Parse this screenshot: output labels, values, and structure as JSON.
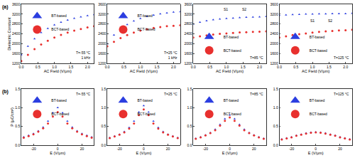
{
  "chart_data": [
    {
      "type": "scatter",
      "panel_label": "(a)",
      "legend": "upper left",
      "xlabel": "AC Field (V/μm)",
      "ylabel": "Dielectric Constant",
      "annotations": [
        "T=-55 °C",
        "1 kHz"
      ],
      "xlim": [
        0,
        2.2
      ],
      "xticks": [
        {
          "value": 0,
          "label": "0.0"
        },
        {
          "value": 0.5,
          "label": "0.5"
        },
        {
          "value": 1,
          "label": "1.0"
        },
        {
          "value": 1.5,
          "label": "1.5"
        },
        {
          "value": 2,
          "label": "2.0"
        }
      ],
      "ylim": [
        1200,
        3600
      ],
      "yticks": [
        1200,
        1600,
        2000,
        2400,
        2800,
        3200,
        3600
      ],
      "x": [
        0,
        0.2,
        0.4,
        0.6,
        0.8,
        1.0,
        1.2,
        1.4,
        1.6,
        1.8,
        2.0,
        2.2
      ],
      "series": [
        {
          "name": "BT-based",
          "color": "#2b3ee0",
          "marker": "triangle-up",
          "values": [
            1550,
            1900,
            2200,
            2450,
            2620,
            2760,
            2870,
            2960,
            3030,
            3090,
            3140,
            3180
          ]
        },
        {
          "name": "BCT-based",
          "color": "#e8302e",
          "marker": "circle",
          "values": [
            1300,
            1550,
            1780,
            1970,
            2120,
            2250,
            2360,
            2450,
            2530,
            2600,
            2660,
            2710
          ]
        }
      ]
    },
    {
      "type": "scatter",
      "legend": "upper left",
      "xlabel": "AC Field (V/μm)",
      "annotations": [
        "T=25 °C",
        "1 kHz"
      ],
      "xlim": [
        0,
        2.2
      ],
      "xticks": [
        {
          "value": 0,
          "label": "0.0"
        },
        {
          "value": 0.5,
          "label": "0.5"
        },
        {
          "value": 1,
          "label": "1.0"
        },
        {
          "value": 1.5,
          "label": "1.5"
        },
        {
          "value": 2,
          "label": "2.0"
        }
      ],
      "ylim": [
        1200,
        3600
      ],
      "yticks": [
        1200,
        1600,
        2000,
        2400,
        2800,
        3200,
        3600
      ],
      "x": [
        0,
        0.2,
        0.4,
        0.6,
        0.8,
        1.0,
        1.2,
        1.4,
        1.6,
        1.8,
        2.0,
        2.2
      ],
      "series": [
        {
          "name": "BT-based",
          "color": "#2b3ee0",
          "marker": "triangle-up",
          "values": [
            2000,
            2350,
            2600,
            2780,
            2920,
            3020,
            3100,
            3160,
            3210,
            3250,
            3280,
            3300
          ]
        },
        {
          "name": "BCT-based",
          "color": "#e8302e",
          "marker": "circle",
          "values": [
            1900,
            2080,
            2230,
            2350,
            2450,
            2530,
            2590,
            2640,
            2680,
            2710,
            2730,
            2750
          ]
        }
      ]
    },
    {
      "type": "scatter",
      "legend": "lower left",
      "xlabel": "AC Field (V/μm)",
      "annotations": [
        "T=85 °C"
      ],
      "inset_labels": [
        "S1",
        "S2"
      ],
      "xlim": [
        0,
        2.2
      ],
      "xticks": [
        {
          "value": 0,
          "label": "0.0"
        },
        {
          "value": 0.5,
          "label": "0.5"
        },
        {
          "value": 1,
          "label": "1.0"
        },
        {
          "value": 1.5,
          "label": "1.5"
        },
        {
          "value": 2,
          "label": "2.0"
        }
      ],
      "ylim": [
        1200,
        3600
      ],
      "yticks": [
        1200,
        1600,
        2000,
        2400,
        2800,
        3200,
        3600
      ],
      "x": [
        0,
        0.2,
        0.4,
        0.6,
        0.8,
        1.0,
        1.2,
        1.4,
        1.6,
        1.8,
        2.0,
        2.2
      ],
      "series": [
        {
          "name": "BT-based",
          "color": "#2b3ee0",
          "marker": "triangle-up",
          "values": [
            2800,
            2870,
            2930,
            2970,
            3000,
            3020,
            3040,
            3060,
            3070,
            3080,
            3090,
            3100
          ]
        },
        {
          "name": "BCT-based",
          "color": "#e8302e",
          "marker": "circle",
          "values": [
            2250,
            2300,
            2340,
            2370,
            2400,
            2420,
            2440,
            2460,
            2470,
            2480,
            2490,
            2500
          ]
        }
      ]
    },
    {
      "type": "scatter",
      "legend": "lower left",
      "xlabel": "AC Field (V/μm)",
      "annotations": [
        "T=125 °C"
      ],
      "inset_labels": [
        "S1",
        "S2"
      ],
      "xlim": [
        0,
        2.2
      ],
      "xticks": [
        {
          "value": 0,
          "label": "0.0"
        },
        {
          "value": 0.5,
          "label": "0.5"
        },
        {
          "value": 1,
          "label": "1.0"
        },
        {
          "value": 1.5,
          "label": "1.5"
        },
        {
          "value": 2,
          "label": "2.0"
        }
      ],
      "ylim": [
        1200,
        3600
      ],
      "yticks": [
        1200,
        1600,
        2000,
        2400,
        2800,
        3200,
        3600
      ],
      "x": [
        0,
        0.2,
        0.4,
        0.6,
        0.8,
        1.0,
        1.2,
        1.4,
        1.6,
        1.8,
        2.0,
        2.2
      ],
      "series": [
        {
          "name": "BT-based",
          "color": "#2b3ee0",
          "marker": "triangle-up",
          "values": [
            3150,
            3170,
            3180,
            3190,
            3200,
            3200,
            3210,
            3210,
            3220,
            3220,
            3220,
            3230
          ]
        },
        {
          "name": "BCT-based",
          "color": "#e8302e",
          "marker": "circle",
          "values": [
            2250,
            2300,
            2350,
            2390,
            2420,
            2450,
            2480,
            2500,
            2520,
            2540,
            2550,
            2570
          ]
        }
      ]
    },
    {
      "type": "scatter",
      "panel_label": "(b)",
      "legend": "upper left",
      "xlabel": "E (V/μm)",
      "ylabel": "P (μC/cm²)",
      "annotations": [
        "T=-55 °C"
      ],
      "xlim": [
        -30,
        30
      ],
      "xticks": [
        -20,
        0,
        20
      ],
      "ylim": [
        0,
        1.5
      ],
      "yticks": [
        {
          "value": 0,
          "label": "0.0"
        },
        {
          "value": 0.5,
          "label": "0.5"
        },
        {
          "value": 1,
          "label": "1.0"
        },
        1.5
      ],
      "x": [
        -28,
        -24,
        -20,
        -16,
        -12,
        -8,
        -4,
        0,
        4,
        8,
        12,
        16,
        20,
        24,
        28
      ],
      "series": [
        {
          "name": "BT-based",
          "color": "#2b3ee0",
          "marker": "triangle-up",
          "values": [
            0.22,
            0.26,
            0.31,
            0.38,
            0.48,
            0.64,
            0.86,
            1.0,
            0.86,
            0.64,
            0.48,
            0.38,
            0.31,
            0.26,
            0.22
          ]
        },
        {
          "name": "BCT-based",
          "color": "#e8302e",
          "marker": "circle",
          "values": [
            0.2,
            0.24,
            0.29,
            0.36,
            0.45,
            0.58,
            0.76,
            0.88,
            0.76,
            0.58,
            0.45,
            0.36,
            0.29,
            0.24,
            0.2
          ]
        }
      ]
    },
    {
      "type": "scatter",
      "legend": "upper left",
      "xlabel": "E (V/μm)",
      "annotations": [
        "T=25 °C"
      ],
      "xlim": [
        -30,
        30
      ],
      "xticks": [
        -20,
        0,
        20
      ],
      "ylim": [
        0,
        1.5
      ],
      "yticks": [
        {
          "value": 0,
          "label": "0.0"
        },
        {
          "value": 0.5,
          "label": "0.5"
        },
        {
          "value": 1,
          "label": "1.0"
        },
        1.5
      ],
      "x": [
        -28,
        -24,
        -20,
        -16,
        -12,
        -8,
        -4,
        0,
        4,
        8,
        12,
        16,
        20,
        24,
        28
      ],
      "series": [
        {
          "name": "BT-based",
          "color": "#2b3ee0",
          "marker": "triangle-up",
          "values": [
            0.2,
            0.24,
            0.29,
            0.36,
            0.47,
            0.64,
            0.88,
            1.05,
            0.88,
            0.64,
            0.47,
            0.36,
            0.29,
            0.24,
            0.2
          ]
        },
        {
          "name": "BCT-based",
          "color": "#e8302e",
          "marker": "circle",
          "values": [
            0.19,
            0.23,
            0.28,
            0.34,
            0.44,
            0.58,
            0.8,
            0.95,
            0.8,
            0.58,
            0.44,
            0.34,
            0.28,
            0.23,
            0.19
          ]
        }
      ]
    },
    {
      "type": "scatter",
      "legend": "upper left",
      "xlabel": "E (V/μm)",
      "annotations": [
        "T=85 °C"
      ],
      "xlim": [
        -30,
        30
      ],
      "xticks": [
        -20,
        0,
        20
      ],
      "ylim": [
        0,
        1.5
      ],
      "yticks": [
        {
          "value": 0,
          "label": "0.0"
        },
        {
          "value": 0.5,
          "label": "0.5"
        },
        {
          "value": 1,
          "label": "1.0"
        },
        1.5
      ],
      "x": [
        -28,
        -24,
        -20,
        -16,
        -12,
        -8,
        -4,
        0,
        4,
        8,
        12,
        16,
        20,
        24,
        28
      ],
      "series": [
        {
          "name": "BT-based",
          "color": "#2b3ee0",
          "marker": "triangle-up",
          "values": [
            0.18,
            0.22,
            0.27,
            0.33,
            0.42,
            0.55,
            0.7,
            0.8,
            0.7,
            0.55,
            0.42,
            0.33,
            0.27,
            0.22,
            0.18
          ]
        },
        {
          "name": "BCT-based",
          "color": "#e8302e",
          "marker": "circle",
          "values": [
            0.17,
            0.21,
            0.26,
            0.32,
            0.4,
            0.52,
            0.65,
            0.74,
            0.65,
            0.52,
            0.4,
            0.32,
            0.26,
            0.21,
            0.17
          ]
        }
      ]
    },
    {
      "type": "scatter",
      "legend": "upper left",
      "xlabel": "E (V/μm)",
      "annotations": [
        "T=125 °C"
      ],
      "xlim": [
        -30,
        30
      ],
      "xticks": [
        -20,
        0,
        20
      ],
      "ylim": [
        0,
        1.5
      ],
      "yticks": [
        {
          "value": 0,
          "label": "0.0"
        },
        {
          "value": 0.5,
          "label": "0.5"
        },
        {
          "value": 1,
          "label": "1.0"
        },
        1.5
      ],
      "x": [
        -28,
        -24,
        -20,
        -16,
        -12,
        -8,
        -4,
        0,
        4,
        8,
        12,
        16,
        20,
        24,
        28
      ],
      "series": [
        {
          "name": "BT-based",
          "color": "#2b3ee0",
          "marker": "triangle-up",
          "values": [
            0.16,
            0.19,
            0.22,
            0.26,
            0.29,
            0.32,
            0.34,
            0.35,
            0.34,
            0.32,
            0.29,
            0.26,
            0.22,
            0.19,
            0.16
          ]
        },
        {
          "name": "BCT-based",
          "color": "#e8302e",
          "marker": "circle",
          "values": [
            0.15,
            0.18,
            0.21,
            0.25,
            0.28,
            0.31,
            0.33,
            0.34,
            0.33,
            0.31,
            0.28,
            0.25,
            0.21,
            0.18,
            0.15
          ]
        }
      ]
    }
  ]
}
